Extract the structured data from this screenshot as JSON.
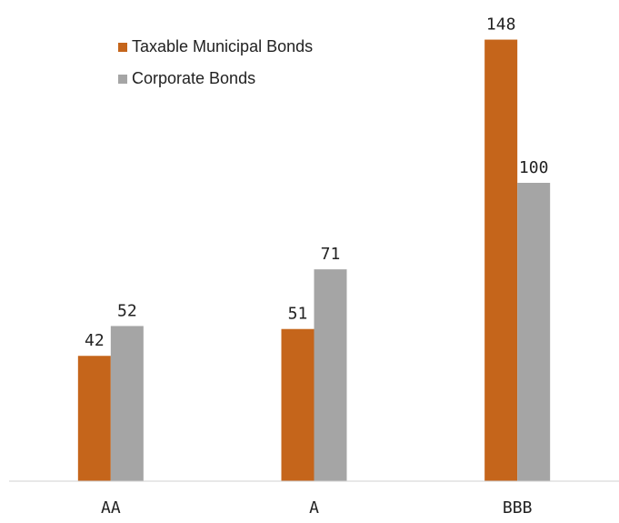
{
  "chart_data": {
    "type": "bar",
    "categories": [
      "AA",
      "A",
      "BBB"
    ],
    "series": [
      {
        "name": "Taxable Municipal Bonds",
        "color": "#c5651b",
        "values": [
          42,
          51,
          148
        ]
      },
      {
        "name": "Corporate Bonds",
        "color": "#a5a5a5",
        "values": [
          52,
          71,
          100
        ]
      }
    ],
    "ylim": [
      0,
      150
    ],
    "legend": "top-left"
  }
}
